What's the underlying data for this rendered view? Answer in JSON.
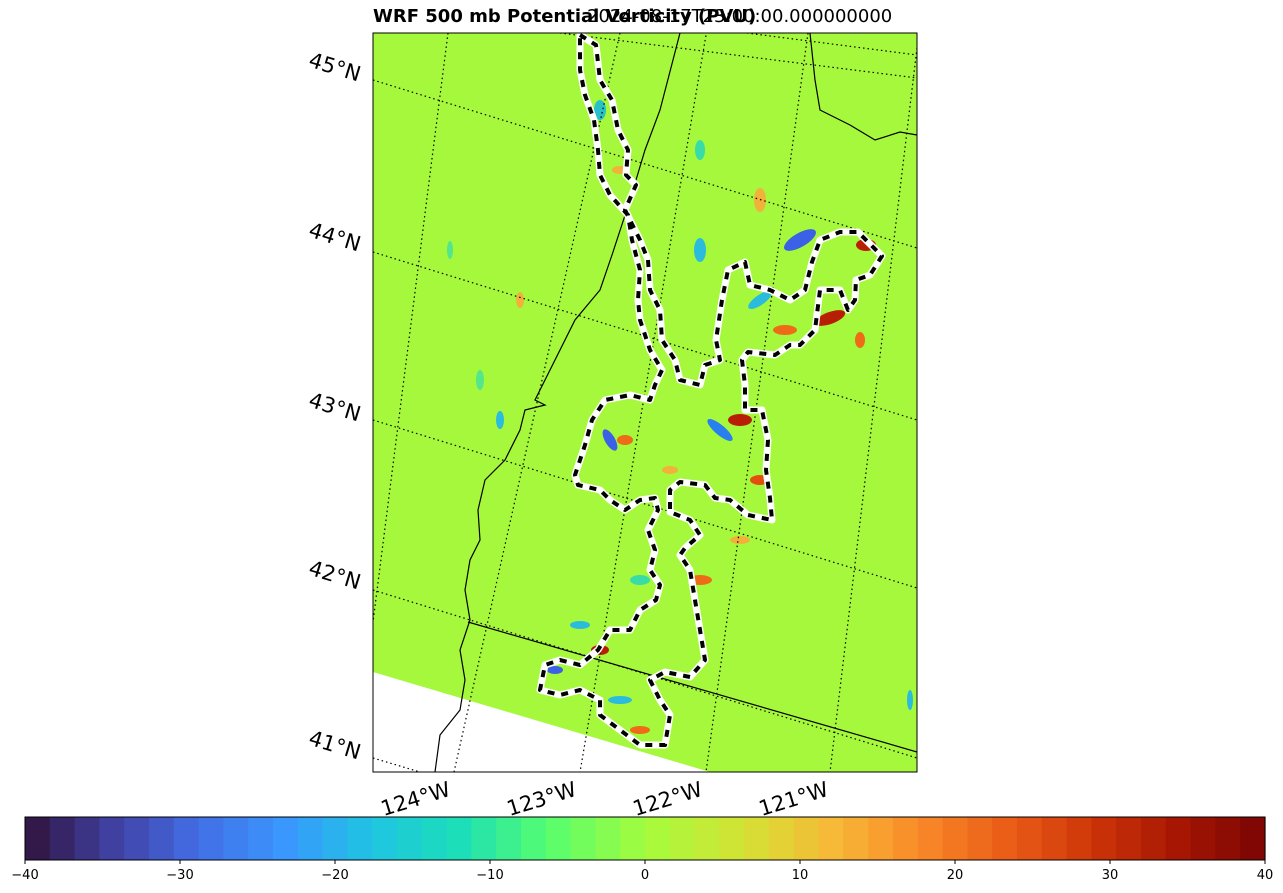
{
  "title": {
    "left": "WRF 500 mb Potential Vorticity (PVU)",
    "right": "2024-08-17T23:00:00.000000000"
  },
  "map": {
    "lat_labels": [
      "45°N",
      "44°N",
      "43°N",
      "42°N",
      "41°N"
    ],
    "lon_labels": [
      "124°W",
      "123°W",
      "122°W",
      "121°W"
    ],
    "background_color": "#a6f83c",
    "gridline_style": "dotted"
  },
  "colorbar": {
    "vmin": -40,
    "vmax": 40,
    "ticks": [
      "−40",
      "−30",
      "−20",
      "−10",
      "0",
      "10",
      "20",
      "30",
      "40"
    ],
    "colormap": "turbo"
  }
}
